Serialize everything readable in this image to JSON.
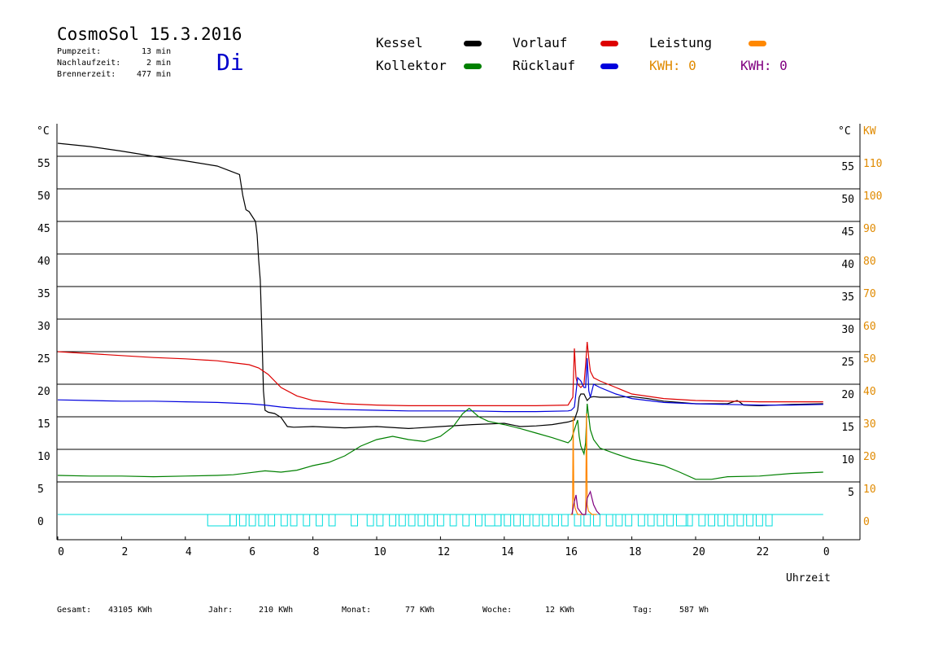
{
  "header": {
    "title": "CosmoSol 15.3.2016",
    "day": "Di",
    "stats": [
      {
        "label": "Pumpzeit:",
        "value": "13 min"
      },
      {
        "label": "Nachlaufzeit:",
        "value": "2 min"
      },
      {
        "label": "Brennerzeit:",
        "value": "477 min"
      }
    ]
  },
  "legend": {
    "kessel": {
      "label": "Kessel",
      "color": "#000000"
    },
    "vorlauf": {
      "label": "Vorlauf",
      "color": "#dd0000"
    },
    "leistung": {
      "label": "Leistung",
      "color": "#ff8800"
    },
    "kollektor": {
      "label": "Kollektor",
      "color": "#008000"
    },
    "ruecklauf": {
      "label": "Rücklauf",
      "color": "#0000dd"
    },
    "kwh1": {
      "label": "KWH: 0",
      "color": "#e08a00"
    },
    "kwh2": {
      "label": "KWH: 0",
      "color": "#800080"
    }
  },
  "footer": {
    "gesamt": {
      "label": "Gesamt:",
      "value": "43105 KWh"
    },
    "jahr": {
      "label": "Jahr:",
      "value": "210 KWh"
    },
    "monat": {
      "label": "Monat:",
      "value": "77 KWh"
    },
    "woche": {
      "label": "Woche:",
      "value": "12 KWh"
    },
    "tag": {
      "label": "Tag:",
      "value": "587 Wh"
    }
  },
  "chart_data": {
    "type": "line",
    "xlabel": "Uhrzeit",
    "ylabel_left": "°C",
    "ylabel_right_temp": "°C",
    "ylabel_right_power": "KW",
    "xlim": [
      0,
      24
    ],
    "ylim": [
      0,
      60
    ],
    "y2lim": [
      0,
      120
    ],
    "x_ticks": [
      "0",
      "2",
      "4",
      "6",
      "8",
      "10",
      "12",
      "14",
      "16",
      "18",
      "20",
      "22",
      "0"
    ],
    "y_ticks_left": [
      0,
      5,
      10,
      15,
      20,
      25,
      30,
      35,
      40,
      45,
      50,
      55
    ],
    "y_ticks_right": [
      5,
      10,
      15,
      20,
      25,
      30,
      35,
      40,
      45,
      50,
      55
    ],
    "y2_ticks": [
      0,
      10,
      20,
      30,
      40,
      50,
      60,
      70,
      80,
      90,
      100,
      110
    ],
    "grid": true,
    "series": [
      {
        "name": "Kessel",
        "color": "#000000",
        "x": [
          0,
          1,
          2,
          3,
          4,
          5,
          5.7,
          5.8,
          5.9,
          6.0,
          6.2,
          6.25,
          6.3,
          6.35,
          6.4,
          6.45,
          6.5,
          6.6,
          6.8,
          7.0,
          7.2,
          7.4,
          8,
          9,
          10,
          11,
          12,
          13,
          14,
          14.5,
          15,
          15.5,
          16,
          16.2,
          16.3,
          16.35,
          16.4,
          16.5,
          16.6,
          16.7,
          16.8,
          17,
          17.5,
          18,
          18.5,
          19,
          19.5,
          20,
          21,
          21.3,
          21.4,
          21.5,
          22,
          23,
          24
        ],
        "y": [
          57,
          56.5,
          55.8,
          55,
          54.3,
          53.5,
          52.2,
          49,
          46.8,
          46.5,
          45,
          43,
          39,
          36,
          28,
          19,
          16,
          15.7,
          15.5,
          14.9,
          13.5,
          13.4,
          13.5,
          13.3,
          13.5,
          13.2,
          13.5,
          13.8,
          14,
          13.5,
          13.6,
          13.8,
          14.2,
          14.5,
          16,
          18,
          18.5,
          18.5,
          17.5,
          18,
          18.1,
          18,
          18,
          18.1,
          17.8,
          17.4,
          17.2,
          17,
          17,
          17.5,
          17.2,
          16.8,
          16.7,
          16.9,
          17
        ]
      },
      {
        "name": "Vorlauf",
        "color": "#dd0000",
        "x": [
          0,
          1,
          2,
          3,
          4,
          5,
          5.5,
          6,
          6.3,
          6.6,
          7,
          7.5,
          8,
          9,
          10,
          11,
          12,
          13,
          14,
          15,
          16,
          16.15,
          16.2,
          16.25,
          16.3,
          16.4,
          16.5,
          16.55,
          16.6,
          16.65,
          16.7,
          16.8,
          17,
          17.5,
          18,
          19,
          20,
          21,
          22,
          23,
          24
        ],
        "y": [
          25,
          24.7,
          24.4,
          24.1,
          23.9,
          23.6,
          23.3,
          23,
          22.5,
          21.5,
          19.5,
          18.2,
          17.5,
          17,
          16.8,
          16.7,
          16.7,
          16.7,
          16.7,
          16.7,
          16.8,
          18,
          25.5,
          21,
          20,
          19.5,
          20,
          23,
          26.5,
          24,
          22,
          21,
          20.5,
          19.5,
          18.5,
          17.8,
          17.5,
          17.4,
          17.3,
          17.3,
          17.3
        ]
      },
      {
        "name": "Rücklauf",
        "color": "#0000dd",
        "x": [
          0,
          1,
          2,
          3,
          4,
          5,
          6,
          6.5,
          7,
          7.5,
          8,
          9,
          10,
          11,
          12,
          13,
          14,
          15,
          16,
          16.1,
          16.2,
          16.3,
          16.4,
          16.5,
          16.55,
          16.6,
          16.65,
          16.7,
          16.8,
          17,
          17.5,
          18,
          19,
          20,
          21,
          22,
          23,
          24
        ],
        "y": [
          17.6,
          17.5,
          17.4,
          17.4,
          17.3,
          17.2,
          17,
          16.8,
          16.5,
          16.3,
          16.2,
          16.1,
          16,
          15.9,
          15.9,
          15.9,
          15.8,
          15.8,
          15.9,
          16,
          16.5,
          21,
          20.5,
          19.5,
          19.5,
          24,
          19,
          18,
          20,
          19.5,
          18.5,
          17.8,
          17.2,
          17,
          16.9,
          16.8,
          16.8,
          16.9
        ]
      },
      {
        "name": "Kollektor",
        "color": "#008000",
        "x": [
          0,
          1,
          2,
          3,
          4,
          5,
          5.5,
          6,
          6.5,
          7,
          7.5,
          8,
          8.5,
          9,
          9.5,
          10,
          10.5,
          11,
          11.5,
          12,
          12.4,
          12.7,
          12.9,
          13.2,
          13.5,
          14,
          14.5,
          15,
          15.5,
          16,
          16.1,
          16.2,
          16.3,
          16.35,
          16.4,
          16.5,
          16.55,
          16.6,
          16.65,
          16.7,
          16.8,
          17,
          17.5,
          18,
          18.5,
          19,
          19.5,
          20,
          20.5,
          21,
          22,
          23,
          24
        ],
        "y": [
          6,
          5.9,
          5.9,
          5.8,
          5.9,
          6,
          6.1,
          6.4,
          6.7,
          6.5,
          6.8,
          7.5,
          8,
          9,
          10.5,
          11.5,
          12,
          11.5,
          11.2,
          12,
          13.5,
          15.5,
          16.3,
          15,
          14.3,
          13.8,
          13.2,
          12.5,
          11.8,
          11,
          11.5,
          13,
          14.5,
          12,
          10.5,
          9.3,
          11,
          17,
          15,
          13,
          11.5,
          10.2,
          9.3,
          8.5,
          8,
          7.5,
          6.5,
          5.4,
          5.4,
          5.8,
          5.9,
          6.3,
          6.5
        ]
      },
      {
        "name": "Leistung",
        "color": "#ff8800",
        "axis": "kw",
        "x": [
          16.08,
          16.14,
          16.16,
          16.18,
          16.22,
          16.3,
          16.5,
          16.55,
          16.58,
          16.6,
          16.64,
          16.75,
          16.9
        ],
        "y": [
          0,
          0,
          30,
          5,
          2,
          0,
          0,
          0,
          31,
          3,
          1,
          0,
          0
        ]
      },
      {
        "name": "Leistung 2",
        "color": "#800080",
        "axis": "kw",
        "x": [
          16.12,
          16.2,
          16.25,
          16.3,
          16.45,
          16.55,
          16.6,
          16.7,
          16.8,
          16.9,
          17.0
        ],
        "y": [
          0,
          4,
          6,
          2,
          0,
          0,
          5,
          7,
          3,
          1,
          0
        ]
      }
    ],
    "baseline": {
      "color": "#00dddd",
      "y": 0,
      "x": [
        0,
        24
      ]
    },
    "pump_markers": {
      "color": "#00dddd",
      "x": [
        4.7,
        5.4,
        5.7,
        6.0,
        6.3,
        6.6,
        7.0,
        7.3,
        7.7,
        8.1,
        8.5,
        9.2,
        9.7,
        10.0,
        10.4,
        10.7,
        11.0,
        11.3,
        11.6,
        11.9,
        12.3,
        12.7,
        13.1,
        13.4,
        13.7,
        14.0,
        14.3,
        14.6,
        14.9,
        15.2,
        15.5,
        15.8,
        16.2,
        16.5,
        16.8,
        17.2,
        17.5,
        17.8,
        18.2,
        18.5,
        18.8,
        19.1,
        19.4,
        19.7,
        20.1,
        20.4,
        20.7,
        21.0,
        21.3,
        21.6,
        21.9,
        22.2
      ],
      "w": [
        0.7,
        0.2,
        0.2,
        0.2,
        0.2,
        0.2,
        0.2,
        0.2,
        0.2,
        0.2,
        0.2,
        0.2,
        0.2,
        0.2,
        0.2,
        0.2,
        0.2,
        0.2,
        0.2,
        0.2,
        0.2,
        0.2,
        0.2,
        0.5,
        0.2,
        0.2,
        0.2,
        0.2,
        0.2,
        0.2,
        0.2,
        0.2,
        0.2,
        0.2,
        0.2,
        0.2,
        0.2,
        0.2,
        0.2,
        0.2,
        0.2,
        0.2,
        0.35,
        0.2,
        0.2,
        0.2,
        0.2,
        0.2,
        0.2,
        0.2,
        0.2,
        0.2
      ]
    }
  }
}
